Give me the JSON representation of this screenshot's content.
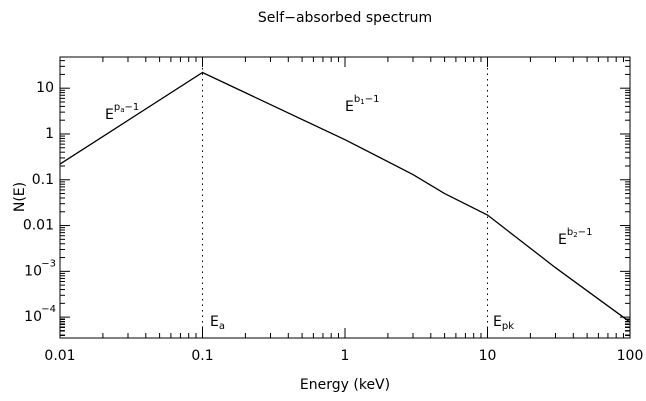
{
  "chart_data": {
    "type": "line",
    "title": "Self−absorbed spectrum",
    "xlabel": "Energy (keV)",
    "ylabel": "N(E)",
    "log_x": true,
    "log_y": true,
    "color": "#000000",
    "x": [
      0.01,
      0.1,
      1,
      3,
      5,
      10,
      30,
      100
    ],
    "values": [
      0.22,
      22,
      0.75,
      0.13,
      0.05,
      0.017,
      0.0012,
      7.8e-05
    ],
    "xlim": [
      0.01,
      100
    ],
    "ylim": [
      3.5e-05,
      48
    ],
    "xticks": [
      0.01,
      0.1,
      1,
      10,
      100
    ],
    "yticks": [
      {
        "value": 0.0001,
        "label": "10",
        "sup": "−4"
      },
      {
        "value": 0.001,
        "label": "10",
        "sup": "−3"
      },
      0.01,
      0.1,
      1,
      10
    ],
    "vlines": [
      0.1,
      10
    ],
    "annotations": [
      {
        "text": "E",
        "sup": "p",
        "sup_sub": "a",
        "sup_rest": "−1"
      },
      {
        "text": "E",
        "sup": "b",
        "sup_sub": "1",
        "sup_rest": "−1"
      },
      {
        "text": "E",
        "sup": "b",
        "sup_sub": "2",
        "sup_rest": "−1"
      },
      {
        "text": "E",
        "sub": "a"
      },
      {
        "text": "E",
        "sub": "pk"
      }
    ]
  }
}
